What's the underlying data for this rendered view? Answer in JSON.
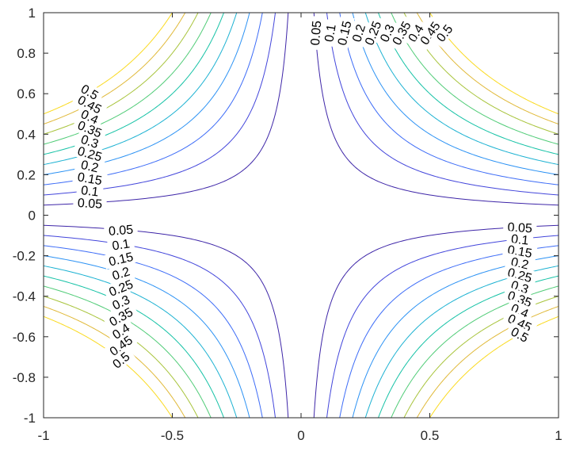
{
  "chart_data": {
    "type": "contour",
    "function": "z = |x*y|",
    "title": "",
    "xlabel": "",
    "ylabel": "",
    "xlim": [
      -1,
      1
    ],
    "ylim": [
      -1,
      1
    ],
    "x_ticks": [
      -1,
      -0.5,
      0,
      0.5,
      1
    ],
    "y_ticks": [
      -1,
      -0.8,
      -0.6,
      -0.4,
      -0.2,
      0,
      0.2,
      0.4,
      0.6,
      0.8,
      1
    ],
    "x_tick_labels": [
      "-1",
      "-0.5",
      "0",
      "0.5",
      "1"
    ],
    "y_tick_labels": [
      "-1",
      "-0.8",
      "-0.6",
      "-0.4",
      "-0.2",
      "0",
      "0.2",
      "0.4",
      "0.6",
      "0.8",
      "1"
    ],
    "levels": [
      0.05,
      0.1,
      0.15,
      0.2,
      0.25,
      0.3,
      0.35,
      0.4,
      0.45,
      0.5
    ],
    "level_labels": [
      "0.05",
      "0.1",
      "0.15",
      "0.2",
      "0.25",
      "0.3",
      "0.35",
      "0.4",
      "0.45",
      "0.5"
    ],
    "colormap": [
      "#3e26a8",
      "#4346db",
      "#3d6cf7",
      "#2c92f4",
      "#1db2d2",
      "#16c2a6",
      "#51cc78",
      "#a8c43c",
      "#e0b939",
      "#fada21"
    ],
    "grid": false,
    "legend": "none"
  }
}
